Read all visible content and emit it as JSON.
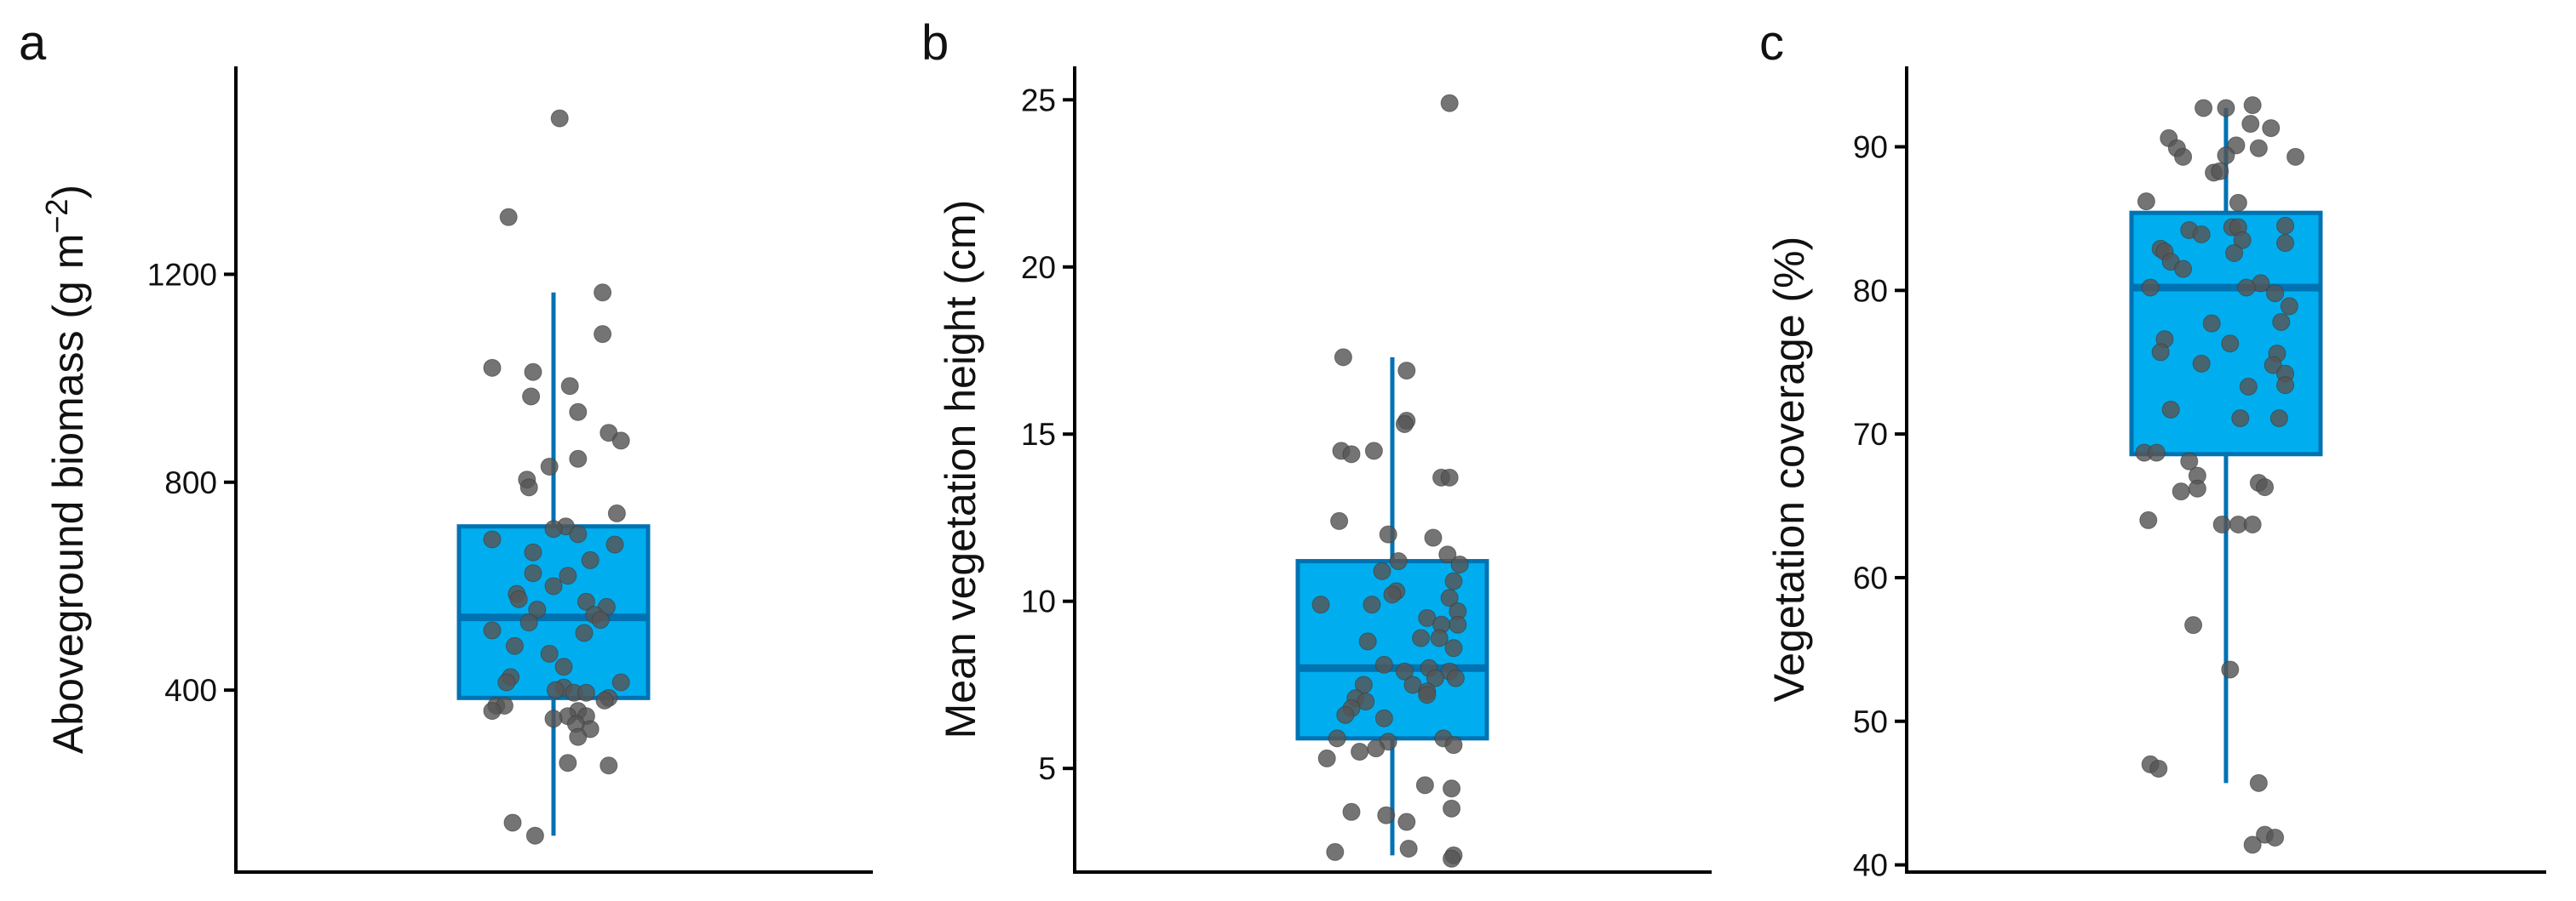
{
  "colors": {
    "box_fill": "#00AEEF",
    "box_stroke": "#0072B2",
    "whisker": "#0072B2",
    "point": "#555555",
    "axis": "#000000"
  },
  "chart_data": [
    {
      "type": "box",
      "panel_label": "a",
      "ylabel": "Aboveground biomass (g m",
      "ylabel_sup": "−2",
      "ylabel_close": ")",
      "ylim": [
        50,
        1600
      ],
      "yticks": [
        400,
        800,
        1200
      ],
      "tick_labels": [
        "400",
        "800",
        "1200"
      ],
      "box": {
        "q1": 385,
        "median": 540,
        "q3": 715,
        "whisker_low": 120,
        "whisker_high": 1165
      },
      "points": [
        {
          "x": 0.03,
          "y": 1500
        },
        {
          "x": -0.22,
          "y": 1310
        },
        {
          "x": 0.24,
          "y": 1165
        },
        {
          "x": 0.24,
          "y": 1085
        },
        {
          "x": -0.3,
          "y": 1020
        },
        {
          "x": -0.1,
          "y": 1012
        },
        {
          "x": 0.08,
          "y": 985
        },
        {
          "x": -0.11,
          "y": 965
        },
        {
          "x": 0.12,
          "y": 935
        },
        {
          "x": 0.27,
          "y": 895
        },
        {
          "x": 0.33,
          "y": 880
        },
        {
          "x": 0.12,
          "y": 845
        },
        {
          "x": -0.02,
          "y": 830
        },
        {
          "x": -0.13,
          "y": 805
        },
        {
          "x": -0.12,
          "y": 790
        },
        {
          "x": 0.31,
          "y": 740
        },
        {
          "x": 0.06,
          "y": 715
        },
        {
          "x": 0.0,
          "y": 710
        },
        {
          "x": 0.12,
          "y": 700
        },
        {
          "x": -0.3,
          "y": 690
        },
        {
          "x": 0.3,
          "y": 680
        },
        {
          "x": -0.1,
          "y": 665
        },
        {
          "x": 0.18,
          "y": 650
        },
        {
          "x": -0.1,
          "y": 625
        },
        {
          "x": 0.07,
          "y": 620
        },
        {
          "x": 0.0,
          "y": 600
        },
        {
          "x": -0.18,
          "y": 585
        },
        {
          "x": -0.17,
          "y": 575
        },
        {
          "x": 0.16,
          "y": 570
        },
        {
          "x": 0.26,
          "y": 560
        },
        {
          "x": -0.08,
          "y": 555
        },
        {
          "x": 0.2,
          "y": 545
        },
        {
          "x": 0.23,
          "y": 535
        },
        {
          "x": -0.12,
          "y": 530
        },
        {
          "x": -0.3,
          "y": 515
        },
        {
          "x": 0.15,
          "y": 510
        },
        {
          "x": -0.19,
          "y": 485
        },
        {
          "x": -0.02,
          "y": 470
        },
        {
          "x": 0.05,
          "y": 445
        },
        {
          "x": -0.21,
          "y": 425
        },
        {
          "x": -0.23,
          "y": 415
        },
        {
          "x": 0.33,
          "y": 415
        },
        {
          "x": 0.05,
          "y": 405
        },
        {
          "x": 0.01,
          "y": 400
        },
        {
          "x": 0.1,
          "y": 395
        },
        {
          "x": 0.16,
          "y": 395
        },
        {
          "x": 0.27,
          "y": 385
        },
        {
          "x": 0.25,
          "y": 380
        },
        {
          "x": -0.28,
          "y": 370
        },
        {
          "x": -0.24,
          "y": 370
        },
        {
          "x": -0.3,
          "y": 360
        },
        {
          "x": 0.12,
          "y": 360
        },
        {
          "x": 0.16,
          "y": 350
        },
        {
          "x": 0.07,
          "y": 350
        },
        {
          "x": 0.0,
          "y": 345
        },
        {
          "x": 0.11,
          "y": 335
        },
        {
          "x": 0.18,
          "y": 325
        },
        {
          "x": 0.12,
          "y": 310
        },
        {
          "x": 0.07,
          "y": 260
        },
        {
          "x": 0.27,
          "y": 255
        },
        {
          "x": -0.2,
          "y": 145
        },
        {
          "x": -0.09,
          "y": 120
        }
      ]
    },
    {
      "type": "box",
      "panel_label": "b",
      "ylabel": "Mean vegetation height (cm)",
      "ylabel_sup": "",
      "ylabel_close": "",
      "ylim": [
        1.9,
        26.0
      ],
      "yticks": [
        5,
        10,
        15,
        20,
        25
      ],
      "tick_labels": [
        "5",
        "10",
        "15",
        "20",
        "25"
      ],
      "box": {
        "q1": 5.9,
        "median": 8.0,
        "q3": 11.2,
        "whisker_low": 2.4,
        "whisker_high": 17.3
      },
      "points": [
        {
          "x": 0.28,
          "y": 24.9
        },
        {
          "x": -0.24,
          "y": 17.3
        },
        {
          "x": 0.07,
          "y": 16.9
        },
        {
          "x": 0.07,
          "y": 15.4
        },
        {
          "x": 0.06,
          "y": 15.3
        },
        {
          "x": -0.25,
          "y": 14.5
        },
        {
          "x": -0.2,
          "y": 14.4
        },
        {
          "x": -0.09,
          "y": 14.5
        },
        {
          "x": 0.24,
          "y": 13.7
        },
        {
          "x": 0.28,
          "y": 13.7
        },
        {
          "x": -0.26,
          "y": 12.4
        },
        {
          "x": -0.02,
          "y": 12.0
        },
        {
          "x": 0.2,
          "y": 11.9
        },
        {
          "x": 0.27,
          "y": 11.4
        },
        {
          "x": 0.03,
          "y": 11.2
        },
        {
          "x": 0.33,
          "y": 11.1
        },
        {
          "x": -0.05,
          "y": 10.9
        },
        {
          "x": 0.3,
          "y": 10.6
        },
        {
          "x": 0.02,
          "y": 10.3
        },
        {
          "x": 0.0,
          "y": 10.2
        },
        {
          "x": 0.28,
          "y": 10.1
        },
        {
          "x": -0.35,
          "y": 9.9
        },
        {
          "x": -0.1,
          "y": 9.9
        },
        {
          "x": 0.32,
          "y": 9.7
        },
        {
          "x": 0.17,
          "y": 9.5
        },
        {
          "x": 0.32,
          "y": 9.3
        },
        {
          "x": 0.24,
          "y": 9.3
        },
        {
          "x": 0.14,
          "y": 8.9
        },
        {
          "x": 0.23,
          "y": 8.9
        },
        {
          "x": -0.12,
          "y": 8.8
        },
        {
          "x": 0.3,
          "y": 8.6
        },
        {
          "x": -0.04,
          "y": 8.1
        },
        {
          "x": 0.18,
          "y": 8.0
        },
        {
          "x": 0.06,
          "y": 7.9
        },
        {
          "x": 0.28,
          "y": 7.9
        },
        {
          "x": 0.21,
          "y": 7.7
        },
        {
          "x": 0.31,
          "y": 7.7
        },
        {
          "x": 0.1,
          "y": 7.5
        },
        {
          "x": -0.14,
          "y": 7.5
        },
        {
          "x": 0.17,
          "y": 7.3
        },
        {
          "x": 0.17,
          "y": 7.2
        },
        {
          "x": -0.18,
          "y": 7.1
        },
        {
          "x": -0.13,
          "y": 7.0
        },
        {
          "x": -0.2,
          "y": 6.8
        },
        {
          "x": -0.23,
          "y": 6.6
        },
        {
          "x": -0.04,
          "y": 6.5
        },
        {
          "x": 0.25,
          "y": 5.9
        },
        {
          "x": -0.27,
          "y": 5.9
        },
        {
          "x": -0.02,
          "y": 5.8
        },
        {
          "x": 0.3,
          "y": 5.7
        },
        {
          "x": -0.08,
          "y": 5.6
        },
        {
          "x": -0.16,
          "y": 5.5
        },
        {
          "x": -0.32,
          "y": 5.3
        },
        {
          "x": 0.16,
          "y": 4.5
        },
        {
          "x": 0.29,
          "y": 4.4
        },
        {
          "x": -0.2,
          "y": 3.7
        },
        {
          "x": -0.03,
          "y": 3.6
        },
        {
          "x": 0.07,
          "y": 3.4
        },
        {
          "x": 0.29,
          "y": 3.8
        },
        {
          "x": -0.28,
          "y": 2.5
        },
        {
          "x": 0.08,
          "y": 2.6
        },
        {
          "x": 0.3,
          "y": 2.4
        },
        {
          "x": 0.29,
          "y": 2.3
        }
      ]
    },
    {
      "type": "box",
      "panel_label": "c",
      "ylabel": "Vegetation coverage (%)",
      "ylabel_sup": "",
      "ylabel_close": "",
      "ylim": [
        39.5,
        95.6
      ],
      "yticks": [
        40,
        50,
        60,
        70,
        80,
        90
      ],
      "tick_labels": [
        "40",
        "50",
        "60",
        "70",
        "80",
        "90"
      ],
      "box": {
        "q1": 68.6,
        "median": 80.2,
        "q3": 85.4,
        "whisker_low": 45.7,
        "whisker_high": 92.7
      },
      "points": [
        {
          "x": -0.11,
          "y": 92.7
        },
        {
          "x": 0.0,
          "y": 92.7
        },
        {
          "x": 0.13,
          "y": 92.9
        },
        {
          "x": 0.12,
          "y": 91.6
        },
        {
          "x": 0.22,
          "y": 91.3
        },
        {
          "x": -0.28,
          "y": 90.6
        },
        {
          "x": -0.24,
          "y": 89.9
        },
        {
          "x": 0.05,
          "y": 90.1
        },
        {
          "x": -0.21,
          "y": 89.3
        },
        {
          "x": 0.16,
          "y": 89.9
        },
        {
          "x": 0.0,
          "y": 89.4
        },
        {
          "x": 0.34,
          "y": 89.3
        },
        {
          "x": -0.06,
          "y": 88.2
        },
        {
          "x": -0.03,
          "y": 88.3
        },
        {
          "x": -0.39,
          "y": 86.2
        },
        {
          "x": 0.06,
          "y": 86.1
        },
        {
          "x": 0.29,
          "y": 84.5
        },
        {
          "x": -0.18,
          "y": 84.2
        },
        {
          "x": 0.03,
          "y": 84.4
        },
        {
          "x": 0.06,
          "y": 84.4
        },
        {
          "x": -0.12,
          "y": 83.9
        },
        {
          "x": 0.29,
          "y": 83.3
        },
        {
          "x": 0.08,
          "y": 83.5
        },
        {
          "x": -0.32,
          "y": 82.9
        },
        {
          "x": -0.3,
          "y": 82.7
        },
        {
          "x": 0.04,
          "y": 82.6
        },
        {
          "x": -0.27,
          "y": 82.0
        },
        {
          "x": -0.21,
          "y": 81.5
        },
        {
          "x": 0.17,
          "y": 80.5
        },
        {
          "x": -0.37,
          "y": 80.2
        },
        {
          "x": 0.1,
          "y": 80.2
        },
        {
          "x": 0.24,
          "y": 79.8
        },
        {
          "x": 0.31,
          "y": 78.9
        },
        {
          "x": 0.27,
          "y": 77.8
        },
        {
          "x": -0.07,
          "y": 77.7
        },
        {
          "x": -0.3,
          "y": 76.6
        },
        {
          "x": 0.02,
          "y": 76.3
        },
        {
          "x": 0.25,
          "y": 75.6
        },
        {
          "x": -0.32,
          "y": 75.7
        },
        {
          "x": -0.12,
          "y": 74.9
        },
        {
          "x": 0.23,
          "y": 74.8
        },
        {
          "x": 0.29,
          "y": 74.2
        },
        {
          "x": 0.29,
          "y": 73.4
        },
        {
          "x": 0.11,
          "y": 73.3
        },
        {
          "x": -0.27,
          "y": 71.7
        },
        {
          "x": 0.26,
          "y": 71.1
        },
        {
          "x": 0.07,
          "y": 71.1
        },
        {
          "x": -0.4,
          "y": 68.7
        },
        {
          "x": -0.34,
          "y": 68.7
        },
        {
          "x": -0.18,
          "y": 68.1
        },
        {
          "x": -0.14,
          "y": 67.1
        },
        {
          "x": 0.16,
          "y": 66.6
        },
        {
          "x": -0.14,
          "y": 66.2
        },
        {
          "x": 0.19,
          "y": 66.3
        },
        {
          "x": -0.22,
          "y": 66.0
        },
        {
          "x": -0.38,
          "y": 64.0
        },
        {
          "x": -0.02,
          "y": 63.7
        },
        {
          "x": 0.06,
          "y": 63.7
        },
        {
          "x": 0.13,
          "y": 63.7
        },
        {
          "x": -0.16,
          "y": 56.7
        },
        {
          "x": 0.02,
          "y": 53.6
        },
        {
          "x": -0.37,
          "y": 47.0
        },
        {
          "x": -0.33,
          "y": 46.7
        },
        {
          "x": 0.16,
          "y": 45.7
        },
        {
          "x": 0.19,
          "y": 42.1
        },
        {
          "x": 0.24,
          "y": 41.9
        },
        {
          "x": 0.13,
          "y": 41.4
        }
      ]
    }
  ]
}
